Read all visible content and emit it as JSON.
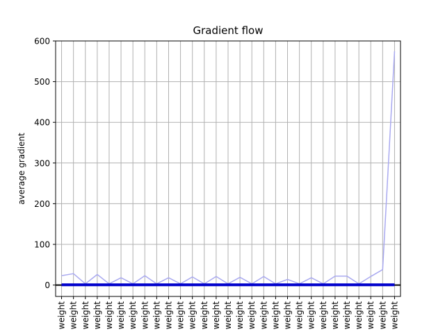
{
  "chart_data": {
    "type": "line",
    "title": "Gradient flow",
    "xlabel": "",
    "ylabel": "average gradient",
    "ylim": [
      -28,
      600
    ],
    "yticks": [
      0,
      100,
      200,
      300,
      400,
      500,
      600
    ],
    "grid": true,
    "categories": [
      "weight",
      "weight",
      "weight",
      "weight",
      "weight",
      "weight",
      "weight",
      "weight",
      "weight",
      "weight",
      "weight",
      "weight",
      "weight",
      "weight",
      "weight",
      "weight",
      "weight",
      "weight",
      "weight",
      "weight",
      "weight",
      "weight",
      "weight",
      "weight",
      "weight",
      "weight",
      "weight",
      "weight",
      "weight"
    ],
    "series": [
      {
        "role": "max-gradient",
        "color": "#a9a9f0",
        "values": [
          23,
          28,
          3,
          26,
          3,
          18,
          3,
          23,
          3,
          18,
          3,
          20,
          3,
          21,
          3,
          19,
          3,
          21,
          3,
          14,
          3,
          18,
          3,
          22,
          22,
          3,
          21,
          38,
          575
        ]
      },
      {
        "role": "mean-gradient",
        "color": "#0000cc",
        "values": [
          0.5,
          0.5,
          0.5,
          0.5,
          0.5,
          0.5,
          0.5,
          0.5,
          0.5,
          0.5,
          0.5,
          0.5,
          0.5,
          0.5,
          0.5,
          0.5,
          0.5,
          0.5,
          0.5,
          0.5,
          0.5,
          0.5,
          0.5,
          0.5,
          0.5,
          0.5,
          0.5,
          0.5,
          0.5
        ]
      }
    ],
    "zero_line": {
      "y": 0,
      "color": "#000000"
    }
  }
}
